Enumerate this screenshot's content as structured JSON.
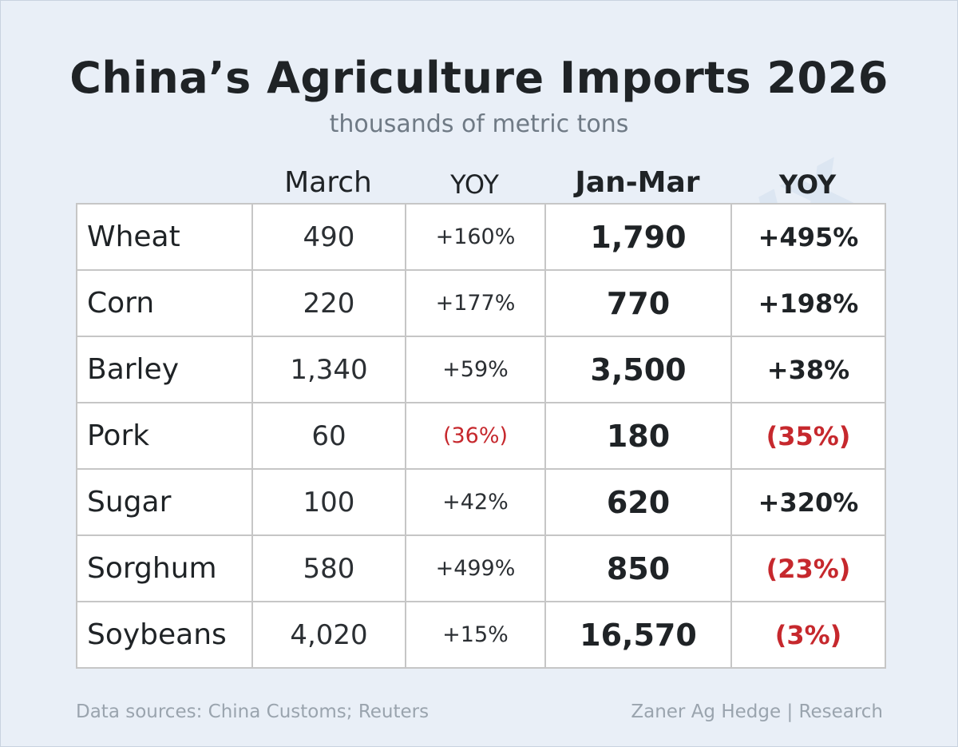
{
  "title": "China’s Agriculture Imports 2026",
  "subtitle": "thousands of metric tons",
  "watermark": "@kannbwx",
  "colors": {
    "negative": "#c6282d",
    "background": "#e9eff7",
    "text": "#1f2326"
  },
  "chart_data": {
    "type": "table",
    "title": "China’s Agriculture Imports 2026",
    "subtitle": "thousands of metric tons",
    "columns": [
      "",
      "March",
      "YOY",
      "Jan-Mar",
      "YOY"
    ],
    "rows": [
      {
        "commodity": "Wheat",
        "march": "490",
        "march_yoy": "+160%",
        "jan_mar": "1,790",
        "jan_mar_yoy": "+495%"
      },
      {
        "commodity": "Corn",
        "march": "220",
        "march_yoy": "+177%",
        "jan_mar": "770",
        "jan_mar_yoy": "+198%"
      },
      {
        "commodity": "Barley",
        "march": "1,340",
        "march_yoy": "+59%",
        "jan_mar": "3,500",
        "jan_mar_yoy": "+38%"
      },
      {
        "commodity": "Pork",
        "march": "60",
        "march_yoy": "(36%)",
        "jan_mar": "180",
        "jan_mar_yoy": "(35%)"
      },
      {
        "commodity": "Sugar",
        "march": "100",
        "march_yoy": "+42%",
        "jan_mar": "620",
        "jan_mar_yoy": "+320%"
      },
      {
        "commodity": "Sorghum",
        "march": "580",
        "march_yoy": "+499%",
        "jan_mar": "850",
        "jan_mar_yoy": "(23%)"
      },
      {
        "commodity": "Soybeans",
        "march": "4,020",
        "march_yoy": "+15%",
        "jan_mar": "16,570",
        "jan_mar_yoy": "(3%)"
      }
    ]
  },
  "footer": {
    "sources": "Data sources: China Customs; Reuters",
    "credit": "Zaner Ag Hedge | Research"
  }
}
